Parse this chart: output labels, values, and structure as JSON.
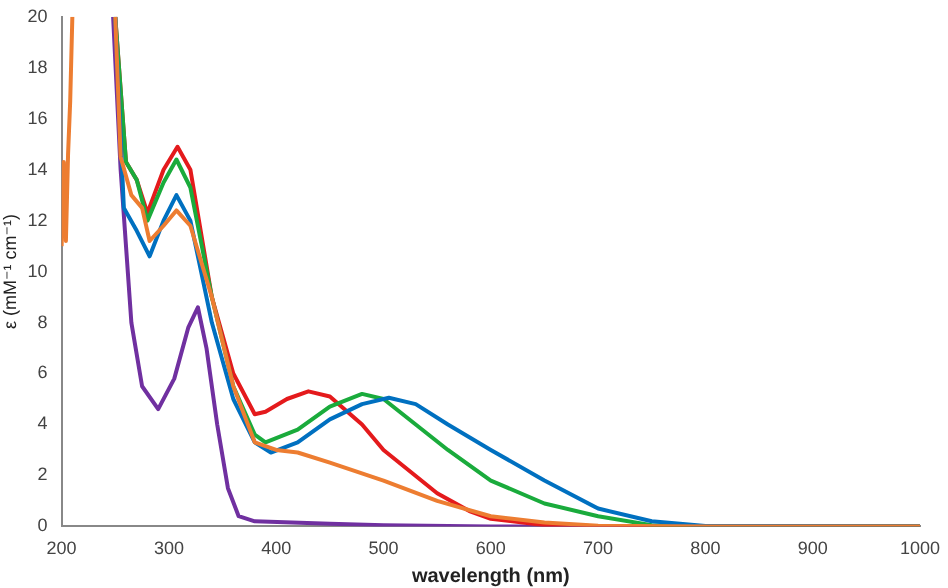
{
  "chart_data": {
    "type": "line",
    "xlabel": "wavelength (nm)",
    "ylabel": "ε (mM⁻¹ cm⁻¹)",
    "xlim": [
      200,
      1000
    ],
    "ylim": [
      0,
      20
    ],
    "xticks": [
      200,
      300,
      400,
      500,
      600,
      700,
      800,
      900,
      1000
    ],
    "yticks": [
      0,
      2,
      4,
      6,
      8,
      10,
      12,
      14,
      16,
      18,
      20
    ],
    "grid": false,
    "legend": false,
    "marker": "none",
    "line_style": "solid",
    "series": [
      {
        "color": "#ed7d31",
        "x": [
          200,
          202,
          204,
          206,
          208,
          210,
          212,
          250,
          255,
          265,
          275,
          282,
          295,
          307,
          320,
          340,
          360,
          380,
          400,
          420,
          450,
          500,
          550,
          600,
          650,
          700,
          800,
          1000
        ],
        "values": [
          11,
          14.3,
          11.2,
          14.6,
          16.7,
          20,
          null,
          20,
          14.5,
          13,
          12.5,
          11.2,
          11.8,
          12.4,
          11.8,
          9,
          5.5,
          3.3,
          3.0,
          2.9,
          2.5,
          1.8,
          1.0,
          0.4,
          0.15,
          0.03,
          0,
          0
        ]
      },
      {
        "color": "#0070c0",
        "x": [
          250,
          258,
          270,
          282,
          295,
          307,
          320,
          340,
          360,
          380,
          395,
          420,
          450,
          480,
          505,
          530,
          560,
          600,
          650,
          700,
          750,
          800,
          1000
        ],
        "values": [
          20,
          12.5,
          11.6,
          10.6,
          12,
          13,
          12,
          8,
          5,
          3.3,
          2.9,
          3.3,
          4.2,
          4.8,
          5.05,
          4.8,
          4,
          3,
          1.8,
          0.7,
          0.2,
          0.02,
          0
        ]
      },
      {
        "color": "#1aab3c",
        "x": [
          250,
          260,
          270,
          280,
          295,
          307,
          320,
          340,
          360,
          380,
          390,
          420,
          450,
          480,
          500,
          530,
          560,
          600,
          650,
          700,
          750,
          800,
          1000
        ],
        "values": [
          20,
          14.3,
          13.6,
          12,
          13.5,
          14.4,
          13.3,
          9,
          5.5,
          3.6,
          3.3,
          3.8,
          4.7,
          5.2,
          5,
          4,
          3,
          1.8,
          0.9,
          0.4,
          0.05,
          0,
          0
        ]
      },
      {
        "color": "#e41a1c",
        "x": [
          250,
          260,
          270,
          280,
          295,
          308,
          320,
          340,
          360,
          380,
          390,
          410,
          430,
          450,
          480,
          500,
          550,
          580,
          600,
          650,
          700,
          1000
        ],
        "values": [
          20,
          14.3,
          13.6,
          12.3,
          14,
          14.9,
          14,
          9,
          6,
          4.4,
          4.5,
          5,
          5.3,
          5.1,
          4,
          3,
          1.3,
          0.6,
          0.3,
          0.05,
          0,
          0
        ]
      },
      {
        "color": "#7030a0",
        "x": [
          248,
          255,
          265,
          275,
          290,
          305,
          318,
          327,
          335,
          345,
          355,
          365,
          380,
          450,
          500,
          600,
          1000
        ],
        "values": [
          20,
          14,
          8,
          5.5,
          4.6,
          5.8,
          7.8,
          8.6,
          7,
          4,
          1.5,
          0.4,
          0.2,
          0.1,
          0.05,
          0,
          0
        ]
      }
    ]
  }
}
